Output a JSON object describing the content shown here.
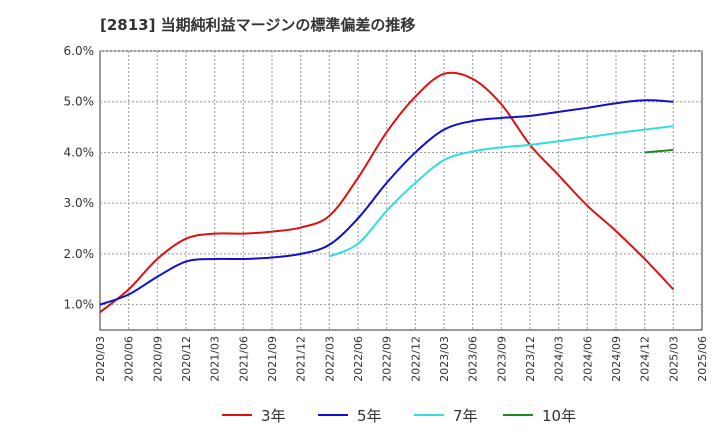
{
  "title": "[2813]  当期純利益マージンの標準偏差の推移",
  "chart_data": {
    "type": "line",
    "title": "[2813]  当期純利益マージンの標準偏差の推移",
    "x_ticks": [
      "2020/03",
      "2020/06",
      "2020/09",
      "2020/12",
      "2021/03",
      "2021/06",
      "2021/09",
      "2021/12",
      "2022/03",
      "2022/06",
      "2022/09",
      "2022/12",
      "2023/03",
      "2023/06",
      "2023/09",
      "2023/12",
      "2024/03",
      "2024/06",
      "2024/09",
      "2024/12",
      "2025/03",
      "2025/06"
    ],
    "y_ticks": [
      "1.0%",
      "2.0%",
      "3.0%",
      "4.0%",
      "5.0%",
      "6.0%"
    ],
    "ylim": [
      0.5,
      6.0
    ],
    "grid": true,
    "legend_position": "bottom",
    "series": [
      {
        "name": "3年",
        "color": "#dd1111",
        "x": [
          "2020/03",
          "2020/06",
          "2020/09",
          "2020/12",
          "2021/03",
          "2021/06",
          "2021/09",
          "2021/12",
          "2022/03",
          "2022/06",
          "2022/09",
          "2022/12",
          "2023/03",
          "2023/06",
          "2023/09",
          "2023/12",
          "2024/03",
          "2024/06",
          "2024/09",
          "2024/12",
          "2025/03"
        ],
        "values": [
          0.85,
          1.3,
          1.9,
          2.3,
          2.4,
          2.4,
          2.44,
          2.52,
          2.75,
          3.5,
          4.4,
          5.1,
          5.55,
          5.45,
          4.95,
          4.15,
          3.55,
          2.95,
          2.45,
          1.9,
          1.3
        ]
      },
      {
        "name": "5年",
        "color": "#1111cc",
        "x": [
          "2020/03",
          "2020/06",
          "2020/09",
          "2020/12",
          "2021/03",
          "2021/06",
          "2021/09",
          "2021/12",
          "2022/03",
          "2022/06",
          "2022/09",
          "2022/12",
          "2023/03",
          "2023/06",
          "2023/09",
          "2023/12",
          "2024/03",
          "2024/06",
          "2024/09",
          "2024/12",
          "2025/03"
        ],
        "values": [
          1.0,
          1.2,
          1.55,
          1.85,
          1.9,
          1.9,
          1.93,
          2.0,
          2.18,
          2.7,
          3.4,
          4.0,
          4.45,
          4.62,
          4.68,
          4.72,
          4.8,
          4.88,
          4.97,
          5.03,
          5.0
        ]
      },
      {
        "name": "7年",
        "color": "#33dddd",
        "x": [
          "2022/03",
          "2022/06",
          "2022/09",
          "2022/12",
          "2023/03",
          "2023/06",
          "2023/09",
          "2023/12",
          "2024/03",
          "2024/06",
          "2024/09",
          "2024/12",
          "2025/03"
        ],
        "values": [
          1.95,
          2.2,
          2.85,
          3.4,
          3.85,
          4.02,
          4.1,
          4.15,
          4.22,
          4.3,
          4.38,
          4.45,
          4.52
        ]
      },
      {
        "name": "10年",
        "color": "#228822",
        "x": [
          "2024/12",
          "2025/03"
        ],
        "values": [
          4.0,
          4.05
        ]
      }
    ]
  }
}
